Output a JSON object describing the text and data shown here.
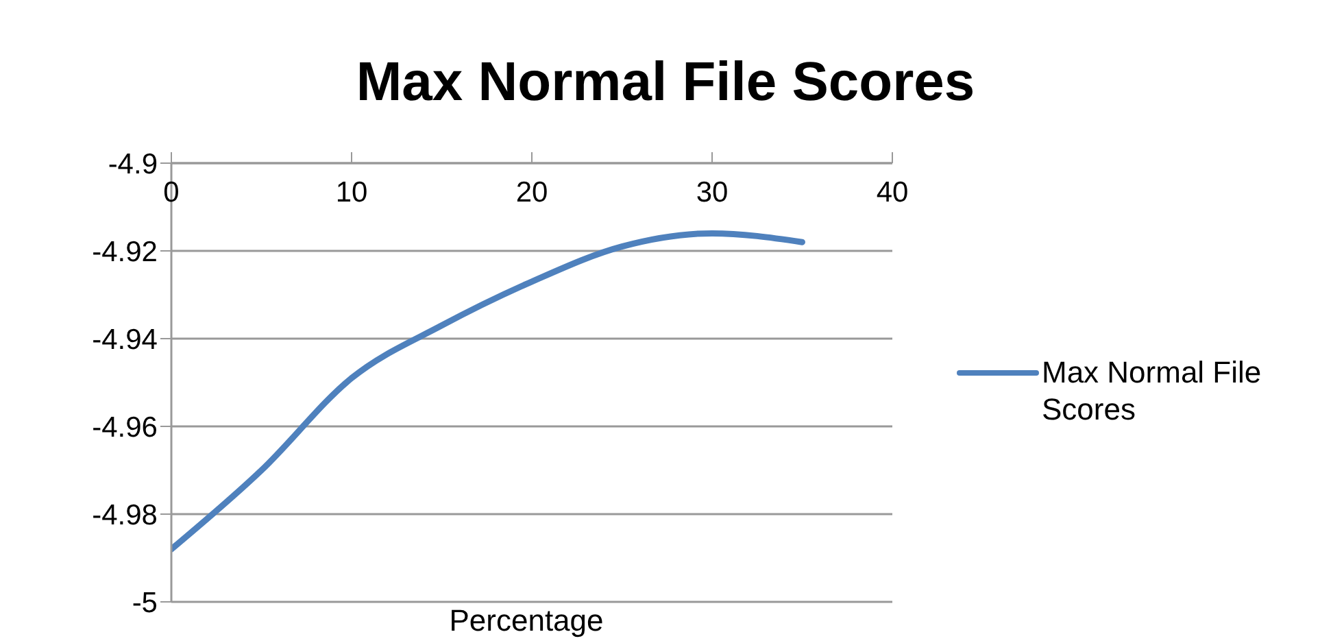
{
  "chart_data": {
    "type": "line",
    "title": "Max Normal File Scores",
    "xlabel": "Percentage",
    "x": [
      0,
      5,
      10,
      15,
      20,
      25,
      30,
      35
    ],
    "series": [
      {
        "name": "Max Normal File Scores",
        "color": "#4f81bd",
        "values": [
          -4.988,
          -4.97,
          -4.949,
          -4.937,
          -4.927,
          -4.919,
          -4.916,
          -4.918
        ]
      }
    ],
    "xlim": [
      0,
      40
    ],
    "xticks": [
      0,
      10,
      20,
      30,
      40
    ],
    "ylim": [
      -5,
      -4.9
    ],
    "yticks": [
      -5,
      -4.98,
      -4.96,
      -4.94,
      -4.92,
      -4.9
    ],
    "grid": "y",
    "legend": "right",
    "marker": "none",
    "line_style": "solid"
  }
}
